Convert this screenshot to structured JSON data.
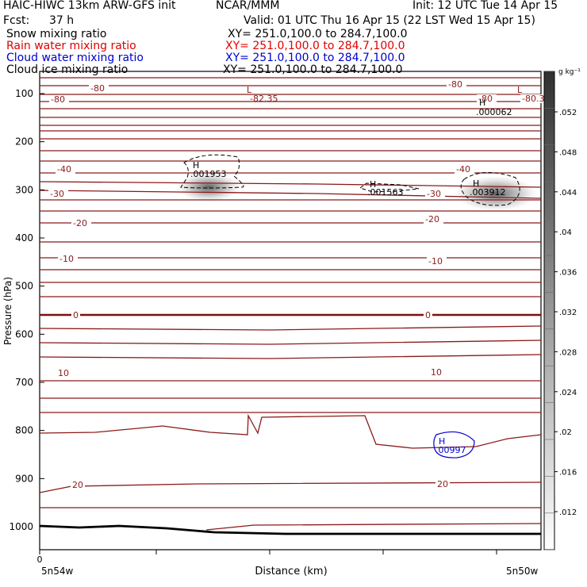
{
  "header": {
    "model": "HAIC-HIWC 13km ARW-GFS init",
    "org": "NCAR/MMM",
    "init": "Init: 12 UTC Tue 14 Apr 15",
    "fcst_label": "Fcst:",
    "fcst_value": "37 h",
    "valid": "Valid: 01 UTC Thu 16 Apr 15 (22 LST Wed 15 Apr 15)",
    "fields": [
      {
        "name": "Snow mixing ratio",
        "xy": "XY= 251.0,100.0 to 284.7,100.0",
        "color": "#000000"
      },
      {
        "name": "Rain water mixing ratio",
        "xy": "XY= 251.0,100.0 to 284.7,100.0",
        "color": "#e00000"
      },
      {
        "name": "Cloud water mixing ratio",
        "xy": "XY= 251.0,100.0 to 284.7,100.0",
        "color": "#0000cc"
      },
      {
        "name": "Cloud ice mixing ratio",
        "xy": "XY= 251.0,100.0 to 284.7,100.0",
        "color": "#000000"
      }
    ]
  },
  "chart_data": {
    "type": "contour cross-section",
    "ylabel": "Pressure (hPa)",
    "xlabel": "Distance (km)",
    "x_start_label": "5n54w",
    "x_end_label": "5n50w",
    "x_origin_tick": "0",
    "y_ticks": [
      "100",
      "200",
      "300",
      "400",
      "500",
      "600",
      "700",
      "800",
      "900",
      "1000"
    ],
    "colorbar": {
      "units": "g kg⁻¹",
      "ticks": [
        ".052",
        ".048",
        ".044",
        ".04",
        ".036",
        ".032",
        ".028",
        ".024",
        ".02",
        ".016",
        ".012"
      ]
    },
    "temperature_contour_labels": [
      "-80",
      "-40",
      "-30",
      "-20",
      "-10",
      "0",
      "10",
      "20",
      "-80.3"
    ],
    "extrema": [
      {
        "mark": "L",
        "value": "-82.35",
        "color": "#8b1a1a"
      },
      {
        "mark": "L",
        "value": "",
        "color": "#8b1a1a"
      },
      {
        "mark": "H",
        "value": ".000062",
        "color": "#000000"
      },
      {
        "mark": "H",
        "value": ".001953",
        "color": "#000000"
      },
      {
        "mark": "H",
        "value": ".001563",
        "color": "#000000"
      },
      {
        "mark": "H",
        "value": ".003912",
        "color": "#000000"
      },
      {
        "mark": "H",
        "value": ".00997",
        "color": "#0000cc"
      }
    ],
    "contour_color": "#8b1a1a"
  }
}
